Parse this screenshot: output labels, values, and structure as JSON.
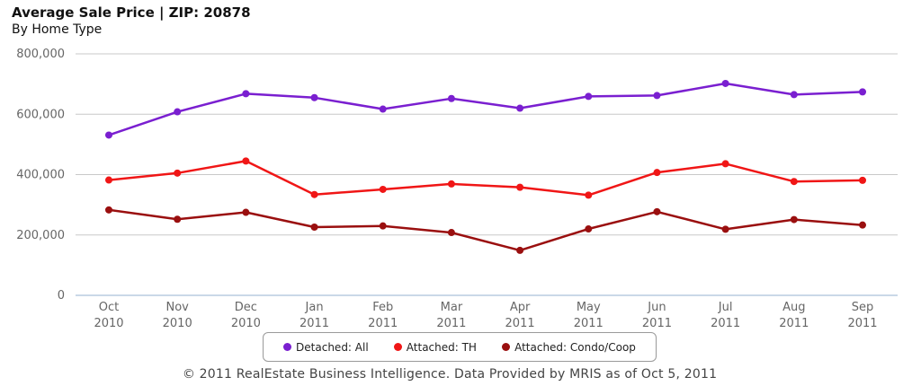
{
  "header": {
    "title": "Average Sale Price | ZIP: 20878",
    "subtitle": "By Home Type"
  },
  "footer": {
    "text": "© 2011 RealEstate Business Intelligence. Data Provided by MRIS as of Oct 5, 2011"
  },
  "chart_data": {
    "type": "line",
    "title": "Average Sale Price | ZIP: 20878",
    "subtitle": "By Home Type",
    "xlabel": "",
    "ylabel": "",
    "ylim": [
      0,
      800000
    ],
    "y_ticks": [
      "0",
      "200,000",
      "400,000",
      "600,000",
      "800,000"
    ],
    "y_tick_values": [
      0,
      200000,
      400000,
      600000,
      800000
    ],
    "categories": [
      [
        "Oct",
        "2010"
      ],
      [
        "Nov",
        "2010"
      ],
      [
        "Dec",
        "2010"
      ],
      [
        "Jan",
        "2011"
      ],
      [
        "Feb",
        "2011"
      ],
      [
        "Mar",
        "2011"
      ],
      [
        "Apr",
        "2011"
      ],
      [
        "May",
        "2011"
      ],
      [
        "Jun",
        "2011"
      ],
      [
        "Jul",
        "2011"
      ],
      [
        "Aug",
        "2011"
      ],
      [
        "Sep",
        "2011"
      ]
    ],
    "grid": true,
    "legend_position": "bottom",
    "series": [
      {
        "name": "Detached: All",
        "color": "#7a1fd0",
        "values": [
          531000,
          608000,
          668000,
          655000,
          617000,
          652000,
          620000,
          659000,
          662000,
          702000,
          665000,
          674000
        ]
      },
      {
        "name": "Attached: TH",
        "color": "#f01616",
        "values": [
          382000,
          405000,
          445000,
          334000,
          351000,
          369000,
          358000,
          332000,
          407000,
          436000,
          377000,
          381000
        ]
      },
      {
        "name": "Attached: Condo/Coop",
        "color": "#9a0f0f",
        "values": [
          283000,
          252000,
          275000,
          226000,
          230000,
          208000,
          149000,
          220000,
          277000,
          219000,
          251000,
          233000
        ]
      }
    ]
  }
}
